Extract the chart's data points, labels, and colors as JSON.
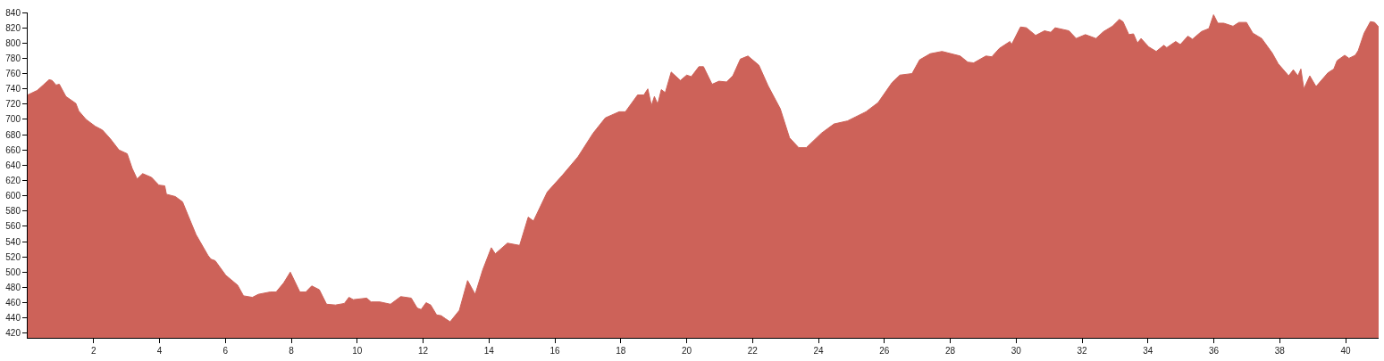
{
  "chart_data": {
    "type": "area",
    "color": "#cd6259",
    "xlim": [
      0,
      41
    ],
    "ylim": [
      414,
      840
    ],
    "xticks": [
      2,
      4,
      6,
      8,
      10,
      12,
      14,
      16,
      18,
      20,
      22,
      24,
      26,
      28,
      30,
      32,
      34,
      36,
      38,
      40
    ],
    "yticks": [
      420,
      440,
      460,
      480,
      500,
      520,
      540,
      560,
      580,
      600,
      620,
      640,
      660,
      680,
      700,
      720,
      740,
      760,
      780,
      800,
      820,
      840
    ],
    "x": [
      0,
      0.29,
      0.47,
      0.65,
      0.74,
      0.86,
      0.96,
      1.16,
      1.46,
      1.55,
      1.77,
      2.05,
      2.27,
      2.5,
      2.77,
      3.02,
      3.17,
      3.32,
      3.49,
      3.76,
      3.98,
      4.16,
      4.21,
      4.48,
      4.7,
      4.88,
      5.11,
      5.47,
      5.56,
      5.69,
      6.01,
      6.37,
      6.55,
      6.82,
      7.0,
      7.36,
      7.54,
      7.77,
      7.97,
      8.26,
      8.44,
      8.62,
      8.85,
      9.07,
      9.34,
      9.61,
      9.75,
      9.88,
      10.29,
      10.42,
      10.69,
      11.01,
      11.32,
      11.64,
      11.82,
      11.94,
      12.09,
      12.23,
      12.41,
      12.55,
      12.68,
      12.82,
      13.1,
      13.35,
      13.58,
      13.81,
      14.07,
      14.19,
      14.56,
      14.93,
      15.19,
      15.35,
      15.77,
      16.23,
      16.7,
      17.16,
      17.53,
      17.95,
      18.14,
      18.51,
      18.7,
      18.82,
      18.93,
      19.02,
      19.12,
      19.23,
      19.35,
      19.53,
      19.81,
      20.0,
      20.14,
      20.37,
      20.51,
      20.77,
      20.98,
      21.21,
      21.4,
      21.63,
      21.86,
      22.19,
      22.47,
      22.84,
      23.12,
      23.4,
      23.63,
      24.09,
      24.47,
      24.88,
      25.44,
      25.81,
      26.23,
      26.47,
      26.84,
      27.07,
      27.39,
      27.75,
      28.3,
      28.53,
      28.71,
      29.08,
      29.26,
      29.49,
      29.81,
      29.86,
      30.13,
      30.31,
      30.59,
      30.86,
      31.05,
      31.18,
      31.6,
      31.82,
      32.1,
      32.42,
      32.65,
      32.92,
      33.13,
      33.24,
      33.42,
      33.56,
      33.68,
      33.79,
      34.02,
      34.25,
      34.48,
      34.57,
      34.84,
      34.98,
      35.21,
      35.35,
      35.62,
      35.85,
      35.99,
      36.12,
      36.3,
      36.58,
      36.76,
      36.99,
      37.18,
      37.45,
      37.77,
      37.95,
      38.27,
      38.41,
      38.55,
      38.64,
      38.73,
      38.91,
      39.1,
      39.46,
      39.64,
      39.74,
      39.97,
      40.1,
      40.29,
      40.38,
      40.56,
      40.75,
      40.88,
      41.0
    ],
    "values": [
      732,
      738,
      745,
      752,
      751,
      745,
      746,
      730,
      721,
      711,
      700,
      691,
      686,
      675,
      660,
      655,
      636,
      622,
      629,
      624,
      614,
      613,
      602,
      599,
      592,
      573,
      549,
      522,
      517,
      515,
      496,
      483,
      469,
      467,
      471,
      474,
      474,
      486,
      500,
      474,
      474,
      482,
      477,
      458,
      457,
      459,
      467,
      464,
      466,
      461,
      461,
      458,
      468,
      466,
      453,
      451,
      460,
      457,
      444,
      443,
      439,
      435,
      450,
      489,
      471,
      503,
      532,
      524,
      538,
      535,
      572,
      567,
      605,
      627,
      651,
      682,
      702,
      710,
      710,
      732,
      732,
      740,
      718,
      730,
      720,
      739,
      735,
      762,
      751,
      758,
      756,
      769,
      769,
      746,
      750,
      749,
      757,
      779,
      783,
      771,
      744,
      714,
      676,
      663,
      663,
      682,
      694,
      698,
      710,
      722,
      748,
      758,
      760,
      778,
      786,
      789,
      783,
      775,
      774,
      783,
      782,
      793,
      802,
      798,
      821,
      820,
      810,
      816,
      814,
      820,
      816,
      806,
      811,
      806,
      815,
      822,
      831,
      828,
      811,
      812,
      800,
      806,
      795,
      789,
      797,
      794,
      802,
      798,
      809,
      805,
      815,
      819,
      837,
      826,
      826,
      822,
      827,
      827,
      813,
      806,
      787,
      773,
      757,
      765,
      757,
      766,
      740,
      757,
      743,
      761,
      766,
      777,
      784,
      780,
      784,
      790,
      813,
      828,
      827,
      821
    ]
  }
}
